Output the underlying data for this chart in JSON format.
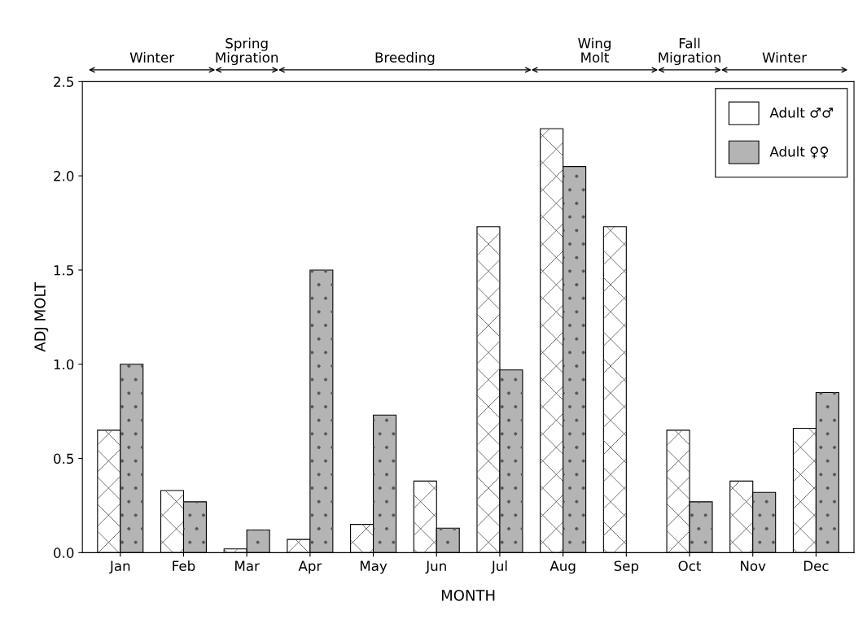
{
  "chart_data": {
    "type": "bar",
    "xlabel": "MONTH",
    "ylabel": "ADJ MOLT",
    "categories": [
      "Jan",
      "Feb",
      "Mar",
      "Apr",
      "May",
      "Jun",
      "Jul",
      "Aug",
      "Sep",
      "Oct",
      "Nov",
      "Dec"
    ],
    "series": [
      {
        "name": "Adult ♂♂",
        "color": "#ffffff",
        "values": [
          0.65,
          0.33,
          0.02,
          0.07,
          0.15,
          0.38,
          1.73,
          2.25,
          1.73,
          0.65,
          0.38,
          0.66
        ]
      },
      {
        "name": "Adult ♀♀",
        "color": "#b4b4b4",
        "values": [
          1.0,
          0.27,
          0.12,
          1.5,
          0.73,
          0.13,
          0.97,
          2.05,
          null,
          0.27,
          0.32,
          0.85
        ]
      }
    ],
    "ylim": [
      0,
      2.5
    ],
    "yticks": [
      {
        "value": 0,
        "label": "0.0"
      },
      {
        "value": 0.5,
        "label": "0.5"
      },
      {
        "value": 1,
        "label": "1.0"
      },
      {
        "value": 1.5,
        "label": "1.5"
      },
      {
        "value": 2,
        "label": "2.0"
      },
      {
        "value": 2.5,
        "label": "2.5"
      }
    ],
    "annotations": [
      "Winter",
      "Spring\nMigration",
      "Breeding",
      "Wing\nMolt",
      "Fall\nMigration",
      "Winter"
    ],
    "grid": false,
    "legend": "top right"
  }
}
